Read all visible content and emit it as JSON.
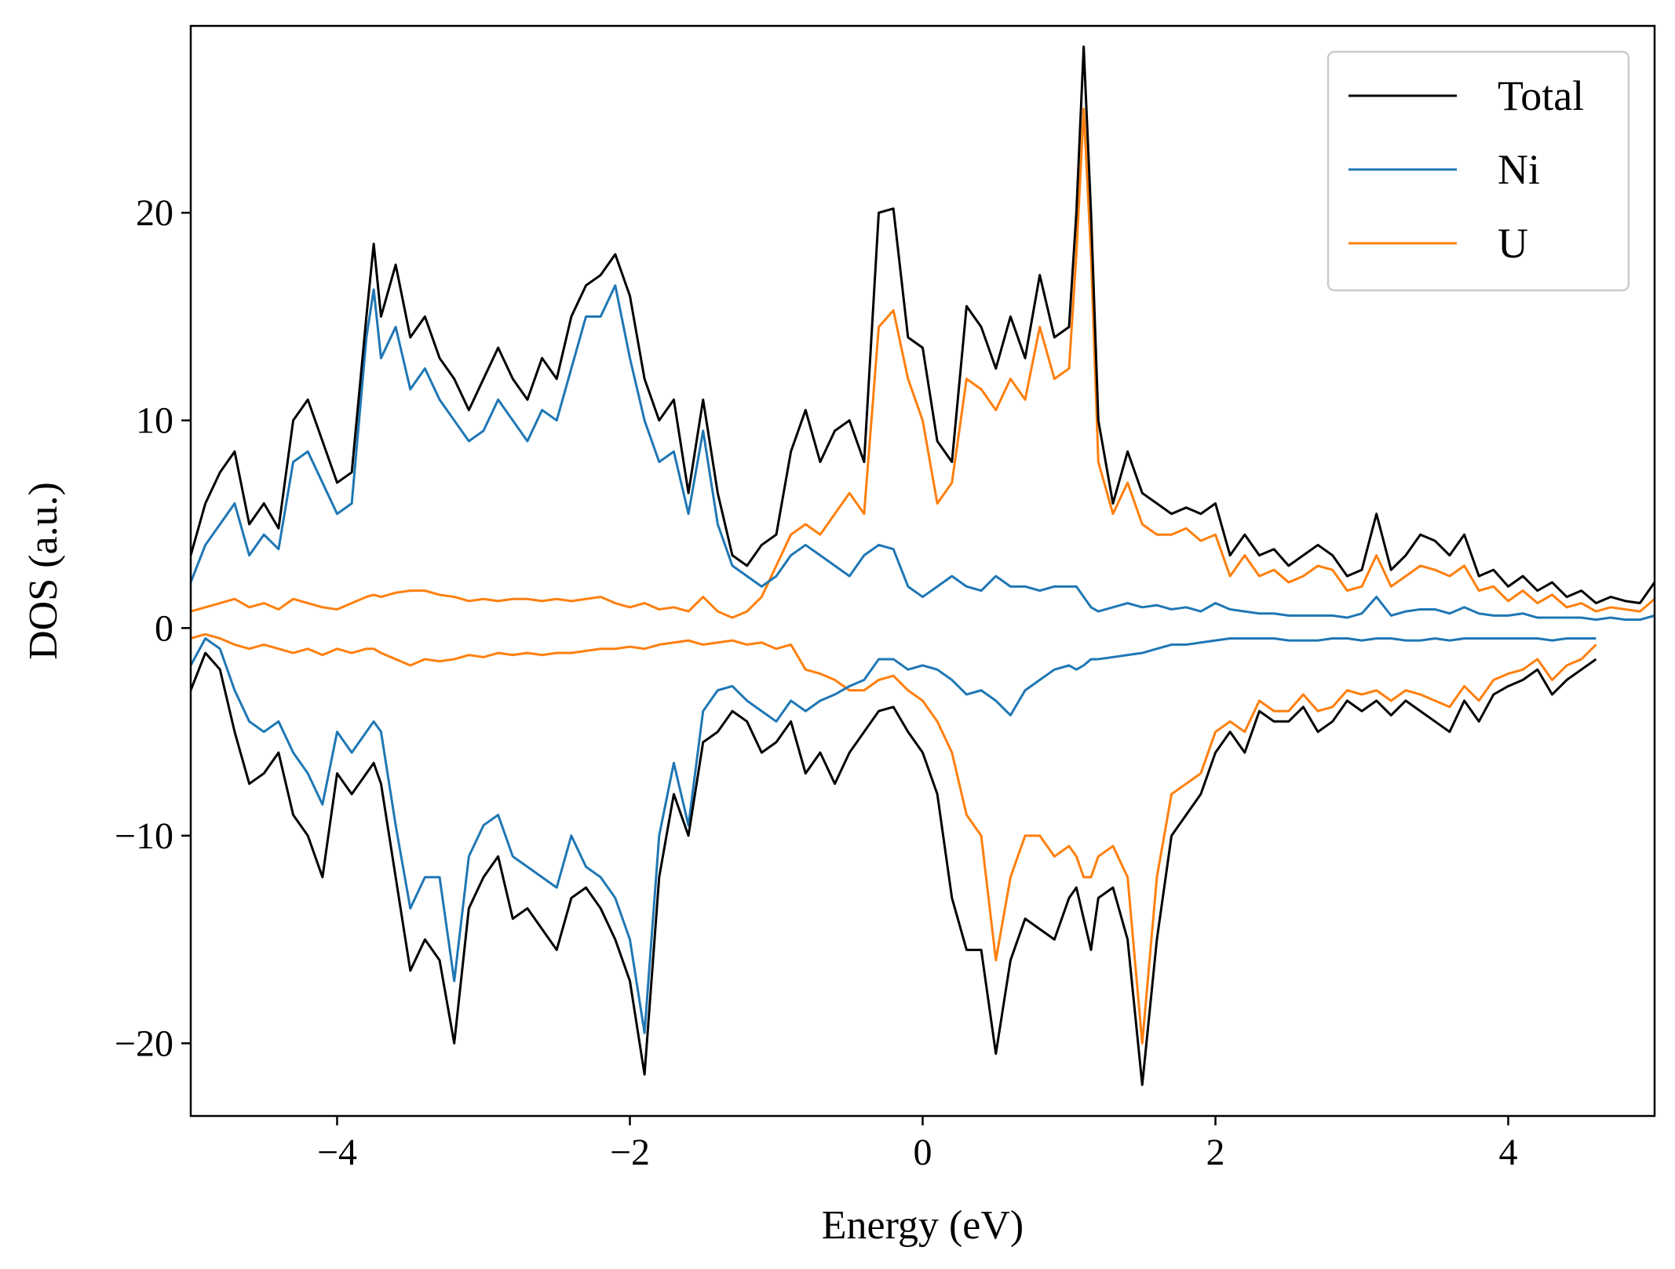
{
  "chart_data": {
    "type": "line",
    "title": "",
    "xlabel": "Energy (eV)",
    "ylabel": "DOS (a.u.)",
    "xlim": [
      -5,
      5
    ],
    "ylim": [
      -23.5,
      29
    ],
    "xticks": [
      -4,
      -2,
      0,
      2,
      4
    ],
    "yticks": [
      -20,
      -10,
      0,
      10,
      20
    ],
    "xtick_labels": [
      "−4",
      "−2",
      "0",
      "2",
      "4"
    ],
    "ytick_labels": [
      "−20",
      "−10",
      "0",
      "10",
      "20"
    ],
    "grid": false,
    "legend": {
      "position": "top-right",
      "entries": [
        "Total",
        "Ni",
        "U"
      ]
    },
    "x": [
      -5.0,
      -4.9,
      -4.8,
      -4.7,
      -4.6,
      -4.5,
      -4.4,
      -4.3,
      -4.2,
      -4.1,
      -4.0,
      -3.9,
      -3.8,
      -3.75,
      -3.7,
      -3.6,
      -3.5,
      -3.4,
      -3.3,
      -3.2,
      -3.1,
      -3.0,
      -2.9,
      -2.8,
      -2.7,
      -2.6,
      -2.5,
      -2.4,
      -2.3,
      -2.2,
      -2.1,
      -2.0,
      -1.9,
      -1.8,
      -1.7,
      -1.6,
      -1.5,
      -1.4,
      -1.3,
      -1.2,
      -1.1,
      -1.0,
      -0.9,
      -0.8,
      -0.7,
      -0.6,
      -0.5,
      -0.4,
      -0.3,
      -0.2,
      -0.1,
      0.0,
      0.1,
      0.2,
      0.3,
      0.4,
      0.5,
      0.6,
      0.7,
      0.8,
      0.9,
      1.0,
      1.05,
      1.1,
      1.15,
      1.2,
      1.3,
      1.4,
      1.5,
      1.6,
      1.7,
      1.8,
      1.9,
      2.0,
      2.1,
      2.2,
      2.3,
      2.4,
      2.5,
      2.6,
      2.7,
      2.8,
      2.9,
      3.0,
      3.1,
      3.2,
      3.3,
      3.4,
      3.5,
      3.6,
      3.7,
      3.8,
      3.9,
      4.0,
      4.1,
      4.2,
      4.3,
      4.4,
      4.5,
      4.6,
      4.7,
      4.8,
      4.9,
      5.0
    ],
    "series": [
      {
        "name": "Total",
        "color": "#000000",
        "up": [
          3.5,
          6,
          7.5,
          8.5,
          5,
          6,
          4.8,
          10,
          11,
          9,
          7,
          7.5,
          15,
          18.5,
          15,
          17.5,
          14,
          15,
          13,
          12,
          10.5,
          12,
          13.5,
          12,
          11,
          13,
          12,
          15,
          16.5,
          17,
          18,
          16,
          12,
          10,
          11,
          6.5,
          11,
          6.5,
          3.5,
          3,
          4,
          4.5,
          8.5,
          10.5,
          8,
          9.5,
          10,
          8,
          20,
          20.2,
          14,
          13.5,
          9,
          8,
          15.5,
          14.5,
          12.5,
          15,
          13,
          17,
          14,
          14.5,
          20,
          28,
          20,
          10,
          6,
          8.5,
          6.5,
          6,
          5.5,
          5.8,
          5.5,
          6,
          3.5,
          4.5,
          3.5,
          3.8,
          3,
          3.5,
          4,
          3.5,
          2.5,
          2.8,
          5.5,
          2.8,
          3.5,
          4.5,
          4.2,
          3.5,
          4.5,
          2.5,
          2.8,
          2,
          2.5,
          1.8,
          2.2,
          1.5,
          1.8,
          1.2,
          1.5,
          1.3,
          1.2,
          2.2
        ],
        "down": [
          -3,
          -1.2,
          -2,
          -5,
          -7.5,
          -7,
          -6,
          -9,
          -10,
          -12,
          -7,
          -8,
          -7,
          -6.5,
          -7.5,
          -12,
          -16.5,
          -15,
          -16,
          -20,
          -13.5,
          -12,
          -11,
          -14,
          -13.5,
          -14.5,
          -15.5,
          -13,
          -12.5,
          -13.5,
          -15,
          -17,
          -21.5,
          -12,
          -8,
          -10,
          -5.5,
          -5,
          -4,
          -4.5,
          -6,
          -5.5,
          -4.5,
          -7,
          -6,
          -7.5,
          -6,
          -5,
          -4,
          -3.8,
          -5,
          -6,
          -8,
          -13,
          -15.5,
          -15.5,
          -20.5,
          -16,
          -14,
          -14.5,
          -15,
          -13,
          -12.5,
          -14,
          -15.5,
          -13,
          -12.5,
          -15,
          -22,
          -15,
          -10,
          -9,
          -8,
          -6,
          -5,
          -6,
          -4,
          -4.5,
          -4.5,
          -3.8,
          -5,
          -4.5,
          -3.5,
          -4,
          -3.5,
          -4.2,
          -3.5,
          -4,
          -4.5,
          -5,
          -3.5,
          -4.5,
          -3.2,
          -2.8,
          -2.5,
          -2,
          -3.2,
          -2.5,
          -2,
          -1.5
        ]
      },
      {
        "name": "Ni",
        "color": "#1f77b4",
        "up": [
          2.2,
          4,
          5,
          6,
          3.5,
          4.5,
          3.8,
          8,
          8.5,
          7,
          5.5,
          6,
          14,
          16.3,
          13,
          14.5,
          11.5,
          12.5,
          11,
          10,
          9,
          9.5,
          11,
          10,
          9,
          10.5,
          10,
          12.5,
          15,
          15,
          16.5,
          13,
          10,
          8,
          8.5,
          5.5,
          9.5,
          5,
          3,
          2.5,
          2,
          2.5,
          3.5,
          4,
          3.5,
          3,
          2.5,
          3.5,
          4,
          3.8,
          2,
          1.5,
          2,
          2.5,
          2,
          1.8,
          2.5,
          2,
          2,
          1.8,
          2,
          2,
          2,
          1.5,
          1,
          0.8,
          1,
          1.2,
          1,
          1.1,
          0.9,
          1,
          0.8,
          1.2,
          0.9,
          0.8,
          0.7,
          0.7,
          0.6,
          0.6,
          0.6,
          0.6,
          0.5,
          0.7,
          1.5,
          0.6,
          0.8,
          0.9,
          0.9,
          0.7,
          1,
          0.7,
          0.6,
          0.6,
          0.7,
          0.5,
          0.5,
          0.5,
          0.5,
          0.4,
          0.5,
          0.4,
          0.4,
          0.6
        ],
        "down": [
          -1.8,
          -0.5,
          -1,
          -3,
          -4.5,
          -5,
          -4.5,
          -6,
          -7,
          -8.5,
          -5,
          -6,
          -5,
          -4.5,
          -5,
          -9.5,
          -13.5,
          -12,
          -12,
          -17,
          -11,
          -9.5,
          -9,
          -11,
          -11.5,
          -12,
          -12.5,
          -10,
          -11.5,
          -12,
          -13,
          -15,
          -19.5,
          -10,
          -6.5,
          -9.5,
          -4,
          -3,
          -2.8,
          -3.5,
          -4,
          -4.5,
          -3.5,
          -4,
          -3.5,
          -3.2,
          -2.8,
          -2.5,
          -1.5,
          -1.5,
          -2,
          -1.8,
          -2,
          -2.5,
          -3.2,
          -3,
          -3.5,
          -4.2,
          -3,
          -2.5,
          -2,
          -1.8,
          -2,
          -1.8,
          -1.5,
          -1.5,
          -1.4,
          -1.3,
          -1.2,
          -1,
          -0.8,
          -0.8,
          -0.7,
          -0.6,
          -0.5,
          -0.5,
          -0.5,
          -0.5,
          -0.6,
          -0.6,
          -0.6,
          -0.5,
          -0.5,
          -0.6,
          -0.5,
          -0.5,
          -0.6,
          -0.6,
          -0.5,
          -0.6,
          -0.5,
          -0.5,
          -0.5,
          -0.5,
          -0.5,
          -0.5,
          -0.6,
          -0.5,
          -0.5,
          -0.5
        ]
      },
      {
        "name": "U",
        "color": "#ff7f0e",
        "up": [
          0.8,
          1,
          1.2,
          1.4,
          1,
          1.2,
          0.9,
          1.4,
          1.2,
          1,
          0.9,
          1.2,
          1.5,
          1.6,
          1.5,
          1.7,
          1.8,
          1.8,
          1.6,
          1.5,
          1.3,
          1.4,
          1.3,
          1.4,
          1.4,
          1.3,
          1.4,
          1.3,
          1.4,
          1.5,
          1.2,
          1,
          1.2,
          0.9,
          1,
          0.8,
          1.5,
          0.8,
          0.5,
          0.8,
          1.5,
          3,
          4.5,
          5,
          4.5,
          5.5,
          6.5,
          5.5,
          14.5,
          15.3,
          12,
          10,
          6,
          7,
          12,
          11.5,
          10.5,
          12,
          11,
          14.5,
          12,
          12.5,
          18,
          25,
          18,
          8,
          5.5,
          7,
          5,
          4.5,
          4.5,
          4.8,
          4.2,
          4.5,
          2.5,
          3.5,
          2.5,
          2.8,
          2.2,
          2.5,
          3,
          2.8,
          1.8,
          2,
          3.5,
          2,
          2.5,
          3,
          2.8,
          2.5,
          3,
          1.8,
          2,
          1.3,
          1.8,
          1.2,
          1.6,
          1,
          1.2,
          0.8,
          1,
          0.9,
          0.8,
          1.4
        ],
        "down": [
          -0.5,
          -0.3,
          -0.5,
          -0.8,
          -1,
          -0.8,
          -1,
          -1.2,
          -1,
          -1.3,
          -1,
          -1.2,
          -1,
          -1,
          -1.2,
          -1.5,
          -1.8,
          -1.5,
          -1.6,
          -1.5,
          -1.3,
          -1.4,
          -1.2,
          -1.3,
          -1.2,
          -1.3,
          -1.2,
          -1.2,
          -1.1,
          -1,
          -1,
          -0.9,
          -1,
          -0.8,
          -0.7,
          -0.6,
          -0.8,
          -0.7,
          -0.6,
          -0.8,
          -0.7,
          -1,
          -0.8,
          -2,
          -2.2,
          -2.5,
          -3,
          -3,
          -2.5,
          -2.3,
          -3,
          -3.5,
          -4.5,
          -6,
          -9,
          -10,
          -16,
          -12,
          -10,
          -10,
          -11,
          -10.5,
          -11,
          -12,
          -12,
          -11,
          -10.5,
          -12,
          -20,
          -12,
          -8,
          -7.5,
          -7,
          -5,
          -4.5,
          -5,
          -3.5,
          -4,
          -4,
          -3.2,
          -4,
          -3.8,
          -3,
          -3.2,
          -3,
          -3.5,
          -3,
          -3.2,
          -3.5,
          -3.8,
          -2.8,
          -3.5,
          -2.5,
          -2.2,
          -2,
          -1.5,
          -2.5,
          -1.8,
          -1.5,
          -0.8
        ]
      }
    ]
  }
}
